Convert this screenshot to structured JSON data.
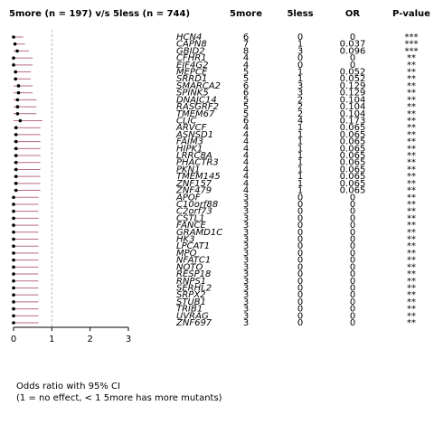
{
  "chart_data": {
    "type": "forest",
    "title": "5more (n = 197) v/s 5less (n = 744)",
    "columns": [
      "5more",
      "5less",
      "OR",
      "P-value"
    ],
    "categories": [
      "HCN4",
      "CAPN8",
      "GBID2",
      "CFHR1",
      "EIF4G2",
      "MEPCE",
      "SRRD1",
      "SMARCA2",
      "SPINK5",
      "DNAJC14",
      "RASGRF2",
      "TMEM67",
      "CLIC",
      "ARVCF",
      "ASNSD1",
      "FAIM3",
      "HIPK1",
      "LRRC8A",
      "PHACTR3",
      "PKN1",
      "TMEM145",
      "ZNF157",
      "ZNF479",
      "APOF",
      "C10orf88",
      "C2orf73",
      "CSTL1",
      "FANCE",
      "GRAMD1C",
      "HK3",
      "LPCAT1",
      "MPO",
      "NFATC1",
      "NOTO",
      "RESP18",
      "RNPS1",
      "SERHL2",
      "SRPX2",
      "STUB1",
      "TRIB1",
      "UVRAG",
      "ZNF697"
    ],
    "counts_5more": [
      6,
      7,
      8,
      4,
      4,
      5,
      5,
      6,
      6,
      5,
      5,
      5,
      6,
      4,
      4,
      4,
      4,
      4,
      4,
      4,
      4,
      4,
      4,
      3,
      3,
      3,
      3,
      3,
      3,
      3,
      3,
      3,
      3,
      3,
      3,
      3,
      3,
      3,
      3,
      3,
      3,
      3
    ],
    "counts_5less": [
      0,
      1,
      3,
      0,
      0,
      1,
      1,
      3,
      3,
      2,
      2,
      2,
      4,
      1,
      1,
      1,
      1,
      1,
      1,
      1,
      1,
      1,
      1,
      0,
      0,
      0,
      0,
      0,
      0,
      0,
      0,
      0,
      0,
      0,
      0,
      0,
      0,
      0,
      0,
      0,
      0,
      0
    ],
    "values": [
      0,
      0.037,
      0.096,
      0,
      0,
      0.052,
      0.052,
      0.129,
      0.129,
      0.104,
      0.104,
      0.104,
      0.173,
      0.065,
      0.065,
      0.065,
      0.065,
      0.065,
      0.065,
      0.065,
      0.065,
      0.065,
      0.065,
      0,
      0,
      0,
      0,
      0,
      0,
      0,
      0,
      0,
      0,
      0,
      0,
      0,
      0,
      0,
      0,
      0,
      0,
      0
    ],
    "ci_lower": [
      0,
      0,
      0,
      0,
      0,
      0,
      0,
      0,
      0,
      0,
      0,
      0,
      0,
      0,
      0,
      0,
      0,
      0,
      0,
      0,
      0,
      0,
      0,
      0,
      0,
      0,
      0,
      0,
      0,
      0,
      0,
      0,
      0,
      0,
      0,
      0,
      0,
      0,
      0,
      0,
      0,
      0
    ],
    "ci_upper": [
      0.25,
      0.3,
      0.4,
      0.5,
      0.5,
      0.45,
      0.45,
      0.5,
      0.5,
      0.6,
      0.6,
      0.6,
      0.75,
      0.7,
      0.7,
      0.7,
      0.7,
      0.7,
      0.7,
      0.7,
      0.7,
      0.7,
      0.7,
      0.65,
      0.65,
      0.65,
      0.65,
      0.65,
      0.65,
      0.65,
      0.65,
      0.65,
      0.65,
      0.65,
      0.65,
      0.65,
      0.65,
      0.65,
      0.65,
      0.65,
      0.65,
      0.65
    ],
    "p_values": [
      "***",
      "***",
      "***",
      "**",
      "**",
      "**",
      "**",
      "**",
      "**",
      "**",
      "**",
      "**",
      "**",
      "**",
      "**",
      "**",
      "**",
      "**",
      "**",
      "**",
      "**",
      "**",
      "**",
      "**",
      "**",
      "**",
      "**",
      "**",
      "**",
      "**",
      "**",
      "**",
      "**",
      "**",
      "**",
      "**",
      "**",
      "**",
      "**",
      "**",
      "**",
      "**"
    ],
    "color": "#b86a8a",
    "ref_line": 1,
    "xlim": [
      0,
      3
    ],
    "xticks": [
      0,
      1,
      2,
      3
    ],
    "x_label": [
      "Odds ratio with 95% CI",
      "(1 = no effect, < 1 5more has more mutants)"
    ]
  }
}
